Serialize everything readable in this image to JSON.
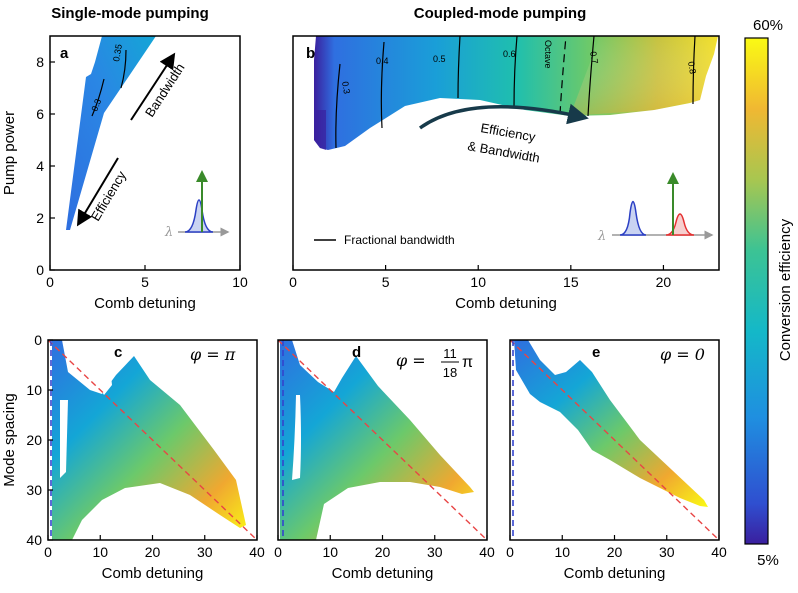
{
  "figure": {
    "title_left": "Single-mode pumping",
    "title_right": "Coupled-mode pumping"
  },
  "colors": {
    "scale": [
      "#3a1f9e",
      "#2f6fe0",
      "#14a6d6",
      "#1fbfae",
      "#6cc96a",
      "#c6c23f",
      "#f0a830",
      "#f7d934",
      "#fafa14"
    ],
    "accent_arrow": "#173a4a",
    "line_red": "#e84545",
    "line_blue": "#3344cc",
    "pump_green": "#3a8a2a"
  },
  "chart_data": [
    {
      "id": "a",
      "type": "heatmap",
      "panel_label": "a",
      "xlabel": "Comb detuning",
      "ylabel": "Pump power",
      "xlim": [
        0,
        10
      ],
      "ylim": [
        0,
        9
      ],
      "xticks": [
        "0",
        "5",
        "10"
      ],
      "yticks": [
        "0",
        "2",
        "4",
        "6",
        "8"
      ],
      "contours": [
        {
          "label": "0.3",
          "value": 0.3,
          "points": [
            [
              2.3,
              6.0
            ],
            [
              2.8,
              7.6
            ]
          ]
        },
        {
          "label": "0.35",
          "value": 0.35,
          "points": [
            [
              3.8,
              7.4
            ],
            [
              4.1,
              8.6
            ]
          ]
        }
      ],
      "region": [
        [
          0.9,
          1.5
        ],
        [
          2.0,
          7.4
        ],
        [
          2.4,
          7.6
        ],
        [
          2.5,
          8.3
        ],
        [
          3.0,
          9.0
        ],
        [
          5.6,
          9.0
        ],
        [
          3.0,
          6.0
        ],
        [
          1.0,
          1.5
        ]
      ],
      "annotations": [
        "Bandwidth",
        "Efficiency"
      ],
      "inset_symbol": "λ"
    },
    {
      "id": "b",
      "type": "heatmap",
      "panel_label": "b",
      "xlabel": "Comb detuning",
      "ylabel": "",
      "xlim": [
        0,
        23
      ],
      "ylim": [
        0,
        9
      ],
      "xticks": [
        "0",
        "5",
        "10",
        "15",
        "20"
      ],
      "yticks": [],
      "contours": [
        {
          "label": "0.3",
          "value": 0.3,
          "points": [
            [
              1.8,
              5.0
            ],
            [
              2.2,
              8.0
            ]
          ]
        },
        {
          "label": "0.4",
          "value": 0.4,
          "points": [
            [
              4.5,
              5.0
            ],
            [
              5.0,
              9.0
            ]
          ]
        },
        {
          "label": "0.5",
          "value": 0.5,
          "points": [
            [
              8.6,
              5.6
            ],
            [
              8.9,
              9.0
            ]
          ]
        },
        {
          "label": "0.6",
          "value": 0.6,
          "points": [
            [
              12.3,
              6.7
            ],
            [
              12.6,
              9.0
            ]
          ]
        },
        {
          "label": "0.7",
          "value": 0.7,
          "points": [
            [
              16.2,
              6.5
            ],
            [
              16.6,
              9.0
            ]
          ]
        },
        {
          "label": "0.8",
          "value": 0.8,
          "points": [
            [
              21.3,
              6.5
            ],
            [
              21.6,
              9.0
            ]
          ]
        }
      ],
      "octave_label": "Octave",
      "annotations": [
        "Efficiency",
        "& Bandwidth"
      ],
      "legend": "Fractional bandwidth",
      "inset_symbol": "λ"
    },
    {
      "id": "c",
      "type": "heatmap",
      "panel_label": "c",
      "xlabel": "Comb detuning",
      "ylabel": "Mode spacing",
      "xlim": [
        0,
        40
      ],
      "ylim": [
        40,
        0
      ],
      "xticks": [
        "0",
        "10",
        "20",
        "30",
        "40"
      ],
      "yticks": [
        "0",
        "10",
        "20",
        "30",
        "40"
      ],
      "phi_label": "φ = π",
      "dashed_red": [
        [
          0,
          0
        ],
        [
          40,
          40
        ]
      ],
      "dashed_blue_x": 0.7
    },
    {
      "id": "d",
      "type": "heatmap",
      "panel_label": "d",
      "xlabel": "Comb detuning",
      "ylabel": "",
      "xlim": [
        0,
        40
      ],
      "ylim": [
        40,
        0
      ],
      "xticks": [
        "0",
        "10",
        "20",
        "30",
        "40"
      ],
      "yticks": [],
      "phi_label": "φ =",
      "phi_fraction": {
        "numerator": "11",
        "denominator": "18",
        "suffix": "π"
      },
      "dashed_red": [
        [
          0,
          0
        ],
        [
          40,
          40
        ]
      ],
      "dashed_blue_x": 1.0
    },
    {
      "id": "e",
      "type": "heatmap",
      "panel_label": "e",
      "xlabel": "Comb detuning",
      "ylabel": "",
      "xlim": [
        0,
        40
      ],
      "ylim": [
        40,
        0
      ],
      "xticks": [
        "0",
        "10",
        "20",
        "30",
        "40"
      ],
      "yticks": [],
      "phi_label": "φ = 0",
      "dashed_red": [
        [
          0,
          0
        ],
        [
          40,
          40
        ]
      ],
      "dashed_blue_x": 0.5
    },
    {
      "id": "colorbar",
      "type": "colorbar",
      "label": "Conversion efficiency",
      "max_label": "60%",
      "min_label": "5%",
      "range": [
        5,
        60
      ]
    }
  ]
}
